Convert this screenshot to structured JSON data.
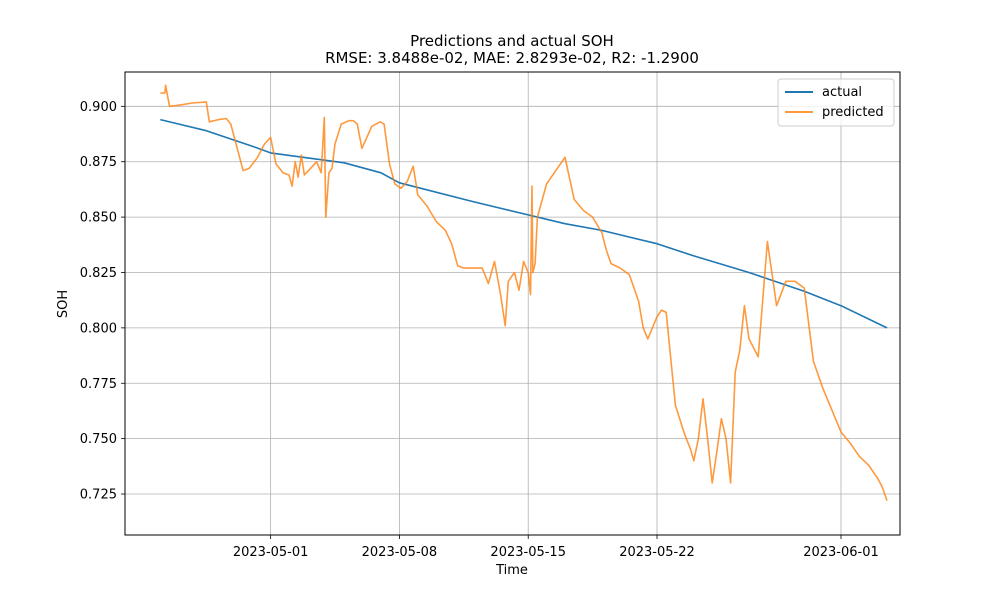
{
  "chart_data": {
    "type": "line",
    "title": "Predictions and actual SOH",
    "subtitle": "RMSE: 3.8488e-02, MAE: 2.8293e-02, R2: -1.2900",
    "xlabel": "Time",
    "ylabel": "SOH",
    "x_type": "date",
    "xlim": [
      "2023-04-23T02:00",
      "2023-06-04T05:00"
    ],
    "ylim": [
      0.7065,
      0.9155
    ],
    "x_ticks": [
      "2023-05-01",
      "2023-05-08",
      "2023-05-15",
      "2023-05-22",
      "2023-06-01"
    ],
    "y_ticks": [
      0.725,
      0.75,
      0.775,
      0.8,
      0.825,
      0.85,
      0.875,
      0.9
    ],
    "y_tick_labels": [
      "0.725",
      "0.750",
      "0.775",
      "0.800",
      "0.825",
      "0.850",
      "0.875",
      "0.900"
    ],
    "grid": true,
    "legend_position": "top-right",
    "series": [
      {
        "name": "actual",
        "color": "#1f77b4",
        "x": [
          "2023-04-25T00:00",
          "2023-04-27T12:00",
          "2023-04-30T00:00",
          "2023-05-01T00:00",
          "2023-05-05T00:00",
          "2023-05-07T00:00",
          "2023-05-08T00:00",
          "2023-05-12T00:00",
          "2023-05-15T00:00",
          "2023-05-17T00:00",
          "2023-05-19T00:00",
          "2023-05-22T00:00",
          "2023-05-24T00:00",
          "2023-05-27T00:00",
          "2023-05-30T00:00",
          "2023-06-01T00:00",
          "2023-06-03T12:00"
        ],
        "y": [
          0.894,
          0.889,
          0.882,
          0.879,
          0.8745,
          0.87,
          0.8655,
          0.857,
          0.851,
          0.847,
          0.844,
          0.838,
          0.8325,
          0.825,
          0.8165,
          0.81,
          0.8
        ]
      },
      {
        "name": "predicted",
        "color": "#ff7f0e",
        "x": [
          "2023-04-25T00:00",
          "2023-04-25T06:00",
          "2023-04-25T07:00",
          "2023-04-25T12:00",
          "2023-04-26T00:00",
          "2023-04-26T18:00",
          "2023-04-27T12:00",
          "2023-04-27T16:00",
          "2023-04-28T04:00",
          "2023-04-28T14:00",
          "2023-04-28T20:00",
          "2023-04-29T12:00",
          "2023-04-29T20:00",
          "2023-04-30T07:00",
          "2023-04-30T16:00",
          "2023-05-01T00:00",
          "2023-05-01T07:00",
          "2023-05-01T16:00",
          "2023-05-02T00:00",
          "2023-05-02T04:00",
          "2023-05-02T08:00",
          "2023-05-02T12:00",
          "2023-05-02T16:00",
          "2023-05-02T20:00",
          "2023-05-03T04:00",
          "2023-05-03T12:00",
          "2023-05-03T18:00",
          "2023-05-03T22:00",
          "2023-05-04T00:00",
          "2023-05-04T04:00",
          "2023-05-04T08:00",
          "2023-05-04T12:00",
          "2023-05-04T20:00",
          "2023-05-05T06:00",
          "2023-05-05T12:00",
          "2023-05-05T17:00",
          "2023-05-05T23:00",
          "2023-05-06T12:00",
          "2023-05-06T23:00",
          "2023-05-07T04:00",
          "2023-05-07T11:00",
          "2023-05-07T18:00",
          "2023-05-08T02:00",
          "2023-05-08T10:00",
          "2023-05-08T18:00",
          "2023-05-09T00:00",
          "2023-05-09T12:00",
          "2023-05-10T00:00",
          "2023-05-10T12:00",
          "2023-05-10T20:00",
          "2023-05-11T04:00",
          "2023-05-11T12:00",
          "2023-05-12T00:00",
          "2023-05-12T12:00",
          "2023-05-12T20:00",
          "2023-05-13T04:00",
          "2023-05-13T12:00",
          "2023-05-13T18:00",
          "2023-05-13T22:00",
          "2023-05-14T06:00",
          "2023-05-14T12:00",
          "2023-05-14T18:00",
          "2023-05-15T00:00",
          "2023-05-15T03:00",
          "2023-05-15T05:00",
          "2023-05-15T06:00",
          "2023-05-15T09:00",
          "2023-05-15T12:00",
          "2023-05-16T00:00",
          "2023-05-16T12:00",
          "2023-05-17T00:00",
          "2023-05-17T12:00",
          "2023-05-18T00:00",
          "2023-05-18T12:00",
          "2023-05-19T00:00",
          "2023-05-19T06:00",
          "2023-05-19T12:00",
          "2023-05-20T00:00",
          "2023-05-20T12:00",
          "2023-05-21T00:00",
          "2023-05-21T06:00",
          "2023-05-21T12:00",
          "2023-05-22T00:00",
          "2023-05-22T06:00",
          "2023-05-22T12:00",
          "2023-05-23T00:00",
          "2023-05-23T12:00",
          "2023-05-23T20:00",
          "2023-05-24T00:00",
          "2023-05-24T06:00",
          "2023-05-24T12:00",
          "2023-05-24T18:00",
          "2023-05-25T00:00",
          "2023-05-25T06:00",
          "2023-05-25T12:00",
          "2023-05-25T18:00",
          "2023-05-26T00:00",
          "2023-05-26T06:00",
          "2023-05-26T12:00",
          "2023-05-26T18:00",
          "2023-05-27T00:00",
          "2023-05-27T12:00",
          "2023-05-28T00:00",
          "2023-05-28T12:00",
          "2023-05-29T00:00",
          "2023-05-29T12:00",
          "2023-05-30T00:00",
          "2023-05-30T12:00",
          "2023-05-31T00:00",
          "2023-05-31T12:00",
          "2023-06-01T00:00",
          "2023-06-01T12:00",
          "2023-06-02T00:00",
          "2023-06-02T12:00",
          "2023-06-03T00:00",
          "2023-06-03T06:00",
          "2023-06-03T12:00"
        ],
        "y": [
          0.906,
          0.906,
          0.9095,
          0.9,
          0.9005,
          0.9015,
          0.902,
          0.893,
          0.894,
          0.8945,
          0.892,
          0.871,
          0.872,
          0.877,
          0.883,
          0.886,
          0.874,
          0.87,
          0.869,
          0.864,
          0.875,
          0.868,
          0.878,
          0.869,
          0.872,
          0.875,
          0.87,
          0.895,
          0.85,
          0.87,
          0.872,
          0.883,
          0.892,
          0.8935,
          0.8935,
          0.892,
          0.881,
          0.891,
          0.893,
          0.892,
          0.874,
          0.865,
          0.863,
          0.866,
          0.873,
          0.86,
          0.855,
          0.848,
          0.844,
          0.838,
          0.828,
          0.827,
          0.827,
          0.827,
          0.82,
          0.83,
          0.815,
          0.801,
          0.821,
          0.825,
          0.817,
          0.83,
          0.825,
          0.815,
          0.864,
          0.825,
          0.829,
          0.85,
          0.865,
          0.871,
          0.877,
          0.858,
          0.853,
          0.85,
          0.843,
          0.835,
          0.829,
          0.827,
          0.824,
          0.812,
          0.8,
          0.795,
          0.805,
          0.808,
          0.807,
          0.765,
          0.752,
          0.745,
          0.74,
          0.75,
          0.768,
          0.75,
          0.73,
          0.744,
          0.759,
          0.75,
          0.73,
          0.78,
          0.79,
          0.81,
          0.795,
          0.787,
          0.839,
          0.81,
          0.821,
          0.821,
          0.818,
          0.785,
          0.773,
          0.763,
          0.753,
          0.748,
          0.742,
          0.738,
          0.732,
          0.728,
          0.722
        ]
      }
    ]
  }
}
